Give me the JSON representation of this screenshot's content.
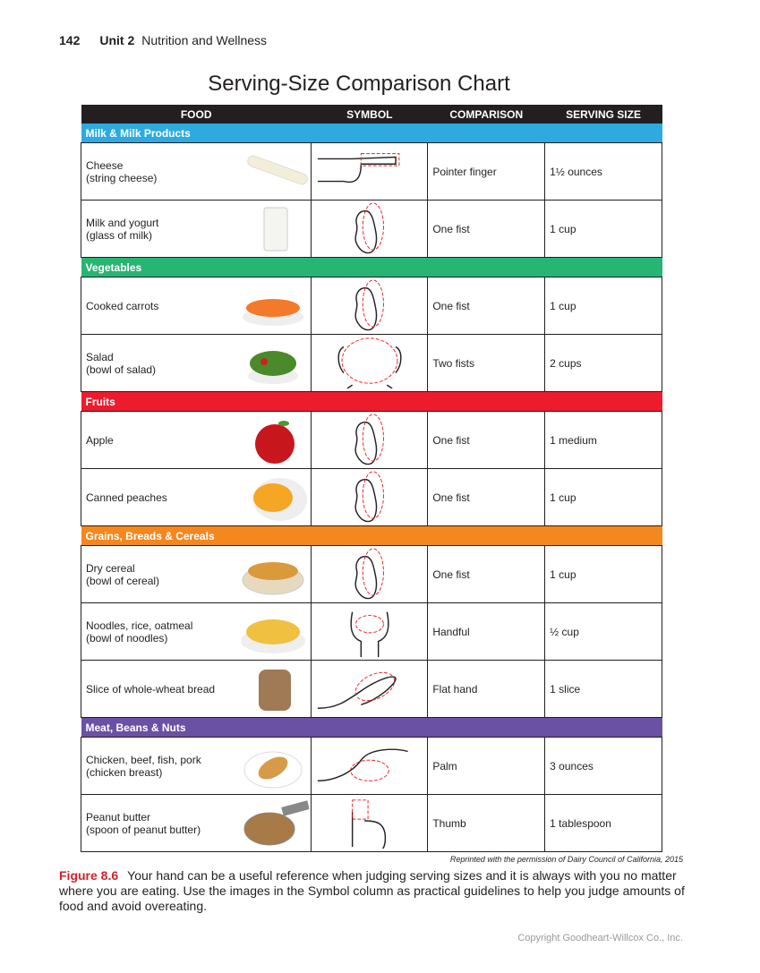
{
  "header": {
    "page_number": "142",
    "unit": "Unit 2",
    "unit_title": "Nutrition and Wellness"
  },
  "title": "Serving-Size Comparison Chart",
  "columns": [
    "FOOD",
    "SYMBOL",
    "COMPARISON",
    "SERVING SIZE"
  ],
  "sections": [
    {
      "name": "Milk & Milk Products",
      "color": "#2eaae1",
      "items": [
        {
          "food": [
            "Cheese",
            "(string cheese)"
          ],
          "image": "string-cheese",
          "symbol": "pointer-finger-icon",
          "comparison": "Pointer finger",
          "serving": "1½ ounces"
        },
        {
          "food": [
            "Milk and yogurt",
            "(glass of milk)"
          ],
          "image": "glass-of-milk",
          "symbol": "fist-icon",
          "comparison": "One fist",
          "serving": "1 cup"
        }
      ]
    },
    {
      "name": "Vegetables",
      "color": "#27b574",
      "items": [
        {
          "food": [
            "Cooked carrots"
          ],
          "image": "carrots",
          "symbol": "fist-icon",
          "comparison": "One fist",
          "serving": "1 cup"
        },
        {
          "food": [
            "Salad",
            "(bowl of salad)"
          ],
          "image": "salad",
          "symbol": "two-fists-icon",
          "comparison": "Two fists",
          "serving": "2 cups"
        }
      ]
    },
    {
      "name": "Fruits",
      "color": "#ec1c2d",
      "items": [
        {
          "food": [
            "Apple"
          ],
          "image": "apple",
          "symbol": "fist-icon",
          "comparison": "One fist",
          "serving": "1 medium"
        },
        {
          "food": [
            "Canned peaches"
          ],
          "image": "peaches",
          "symbol": "fist-icon",
          "comparison": "One fist",
          "serving": "1 cup"
        }
      ]
    },
    {
      "name": "Grains, Breads & Cereals",
      "color": "#f5871f",
      "items": [
        {
          "food": [
            "Dry cereal",
            "(bowl of cereal)"
          ],
          "image": "cereal",
          "symbol": "fist-icon",
          "comparison": "One fist",
          "serving": "1 cup"
        },
        {
          "food": [
            "Noodles, rice, oatmeal",
            "(bowl of noodles)"
          ],
          "image": "noodles",
          "symbol": "handful-icon",
          "comparison": "Handful",
          "serving": "½ cup"
        },
        {
          "food": [
            "Slice of whole-wheat bread"
          ],
          "image": "bread",
          "symbol": "flat-hand-icon",
          "comparison": "Flat hand",
          "serving": "1 slice"
        }
      ]
    },
    {
      "name": "Meat, Beans & Nuts",
      "color": "#6a51a3",
      "items": [
        {
          "food": [
            "Chicken, beef, fish, pork",
            "(chicken breast)"
          ],
          "image": "chicken-breast",
          "symbol": "palm-icon",
          "comparison": "Palm",
          "serving": "3 ounces"
        },
        {
          "food": [
            "Peanut butter",
            "(spoon of peanut butter)"
          ],
          "image": "peanut-butter-spoon",
          "symbol": "thumb-icon",
          "comparison": "Thumb",
          "serving": "1 tablespoon"
        }
      ]
    }
  ],
  "credit": "Reprinted with the permission of Dairy Council of California, 2015",
  "caption": {
    "label": "Figure 8.6",
    "text": "Your hand can be a useful reference when judging serving sizes and it is always with you no matter where you are eating. Use the images in the Symbol column as practical guidelines to help you judge amounts of food and avoid overeating."
  },
  "copyright": "Copyright Goodheart-Willcox Co., Inc."
}
